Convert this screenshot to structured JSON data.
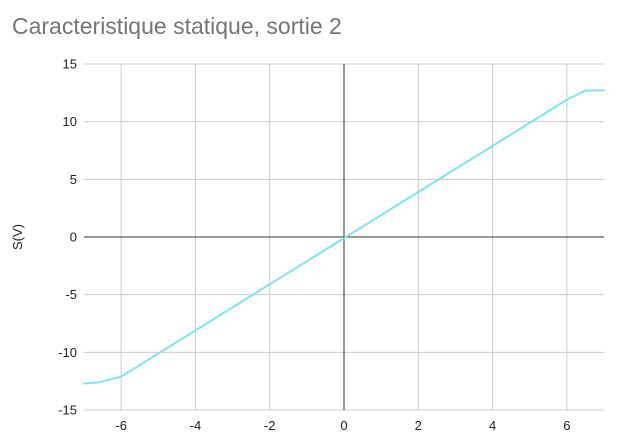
{
  "chart_data": {
    "type": "line",
    "title": "Caracteristique statique, sortie 2",
    "xlabel": "",
    "ylabel": "S(V)",
    "xlim": [
      -7,
      7
    ],
    "ylim": [
      -15,
      15
    ],
    "x_ticks": [
      -6,
      -4,
      -2,
      0,
      2,
      4,
      6
    ],
    "y_ticks": [
      15,
      10,
      5,
      0,
      -5,
      -10,
      -15
    ],
    "grid": true,
    "legend": "none",
    "series": [
      {
        "color": "#7fe3f5",
        "x": [
          -7,
          -6.6,
          -6,
          6,
          6.5,
          7
        ],
        "y": [
          -12.7,
          -12.6,
          -12.1,
          11.9,
          12.7,
          12.7
        ]
      }
    ]
  }
}
